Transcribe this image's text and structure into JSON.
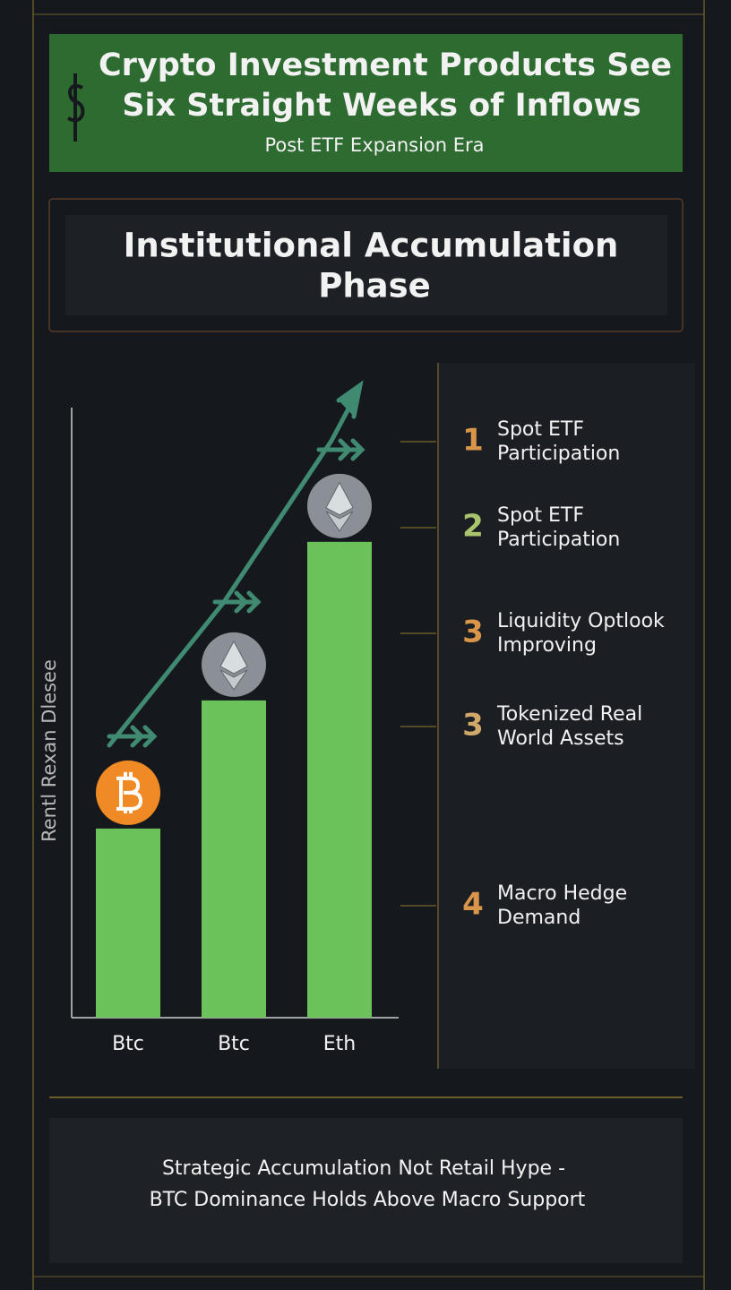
{
  "header": {
    "title": [
      "Crypto Investment Products See",
      "Six Straight Weeks of Inflows"
    ],
    "subtitle": "Post ETF Expansion Era"
  },
  "section": {
    "title": [
      "Institutional Accumulation",
      "Phase"
    ]
  },
  "chart_data": {
    "type": "bar",
    "y_label": "Rentl Rexan Dlesee",
    "categories": [
      "Btc",
      "Btc",
      "Eth"
    ],
    "values": [
      31,
      52,
      78
    ],
    "color": "#6cc25a",
    "ylim": [
      0,
      100
    ]
  },
  "list": {
    "items": [
      {
        "number": "1",
        "text": [
          "Spot ETF",
          "Participation"
        ],
        "color": "#d9954a"
      },
      {
        "number": "2",
        "text": [
          "Spot ETF",
          "Participation"
        ],
        "color": "#a9c46c"
      },
      {
        "number": "3",
        "text": [
          "Liquidity Optlook",
          "Improving"
        ],
        "color": "#d9954a"
      },
      {
        "number": "3",
        "text": [
          "Tokenized Real",
          "World Assets"
        ],
        "color": "#cfa86a"
      },
      {
        "number": "4",
        "text": [
          "Macro Hedge",
          "Demand"
        ],
        "color": "#d9954a"
      }
    ]
  },
  "footer": {
    "text": [
      "Strategic Accumulation Not Retail Hype -",
      "BTC Dominance Holds Above Macro Support"
    ]
  }
}
